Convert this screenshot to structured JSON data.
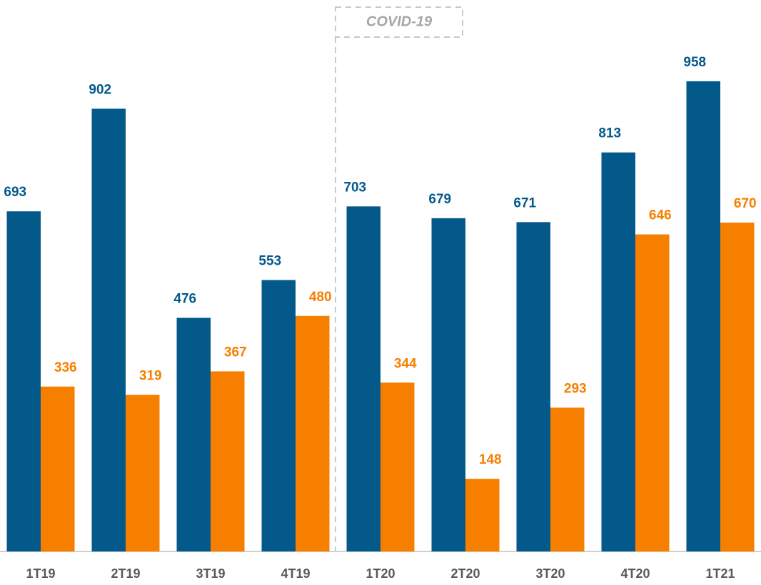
{
  "chart_data": {
    "type": "bar",
    "annotation": "COVID-19",
    "categories": [
      "1T19",
      "2T19",
      "3T19",
      "4T19",
      "1T20",
      "2T20",
      "3T20",
      "4T20",
      "1T21"
    ],
    "series": [
      {
        "color": "#04598b",
        "values": [
          693,
          902,
          476,
          553,
          703,
          679,
          671,
          813,
          958
        ]
      },
      {
        "color": "#f77f00",
        "values": [
          336,
          319,
          367,
          480,
          344,
          148,
          293,
          646,
          670
        ]
      }
    ],
    "ylim": [
      0,
      1000
    ]
  }
}
